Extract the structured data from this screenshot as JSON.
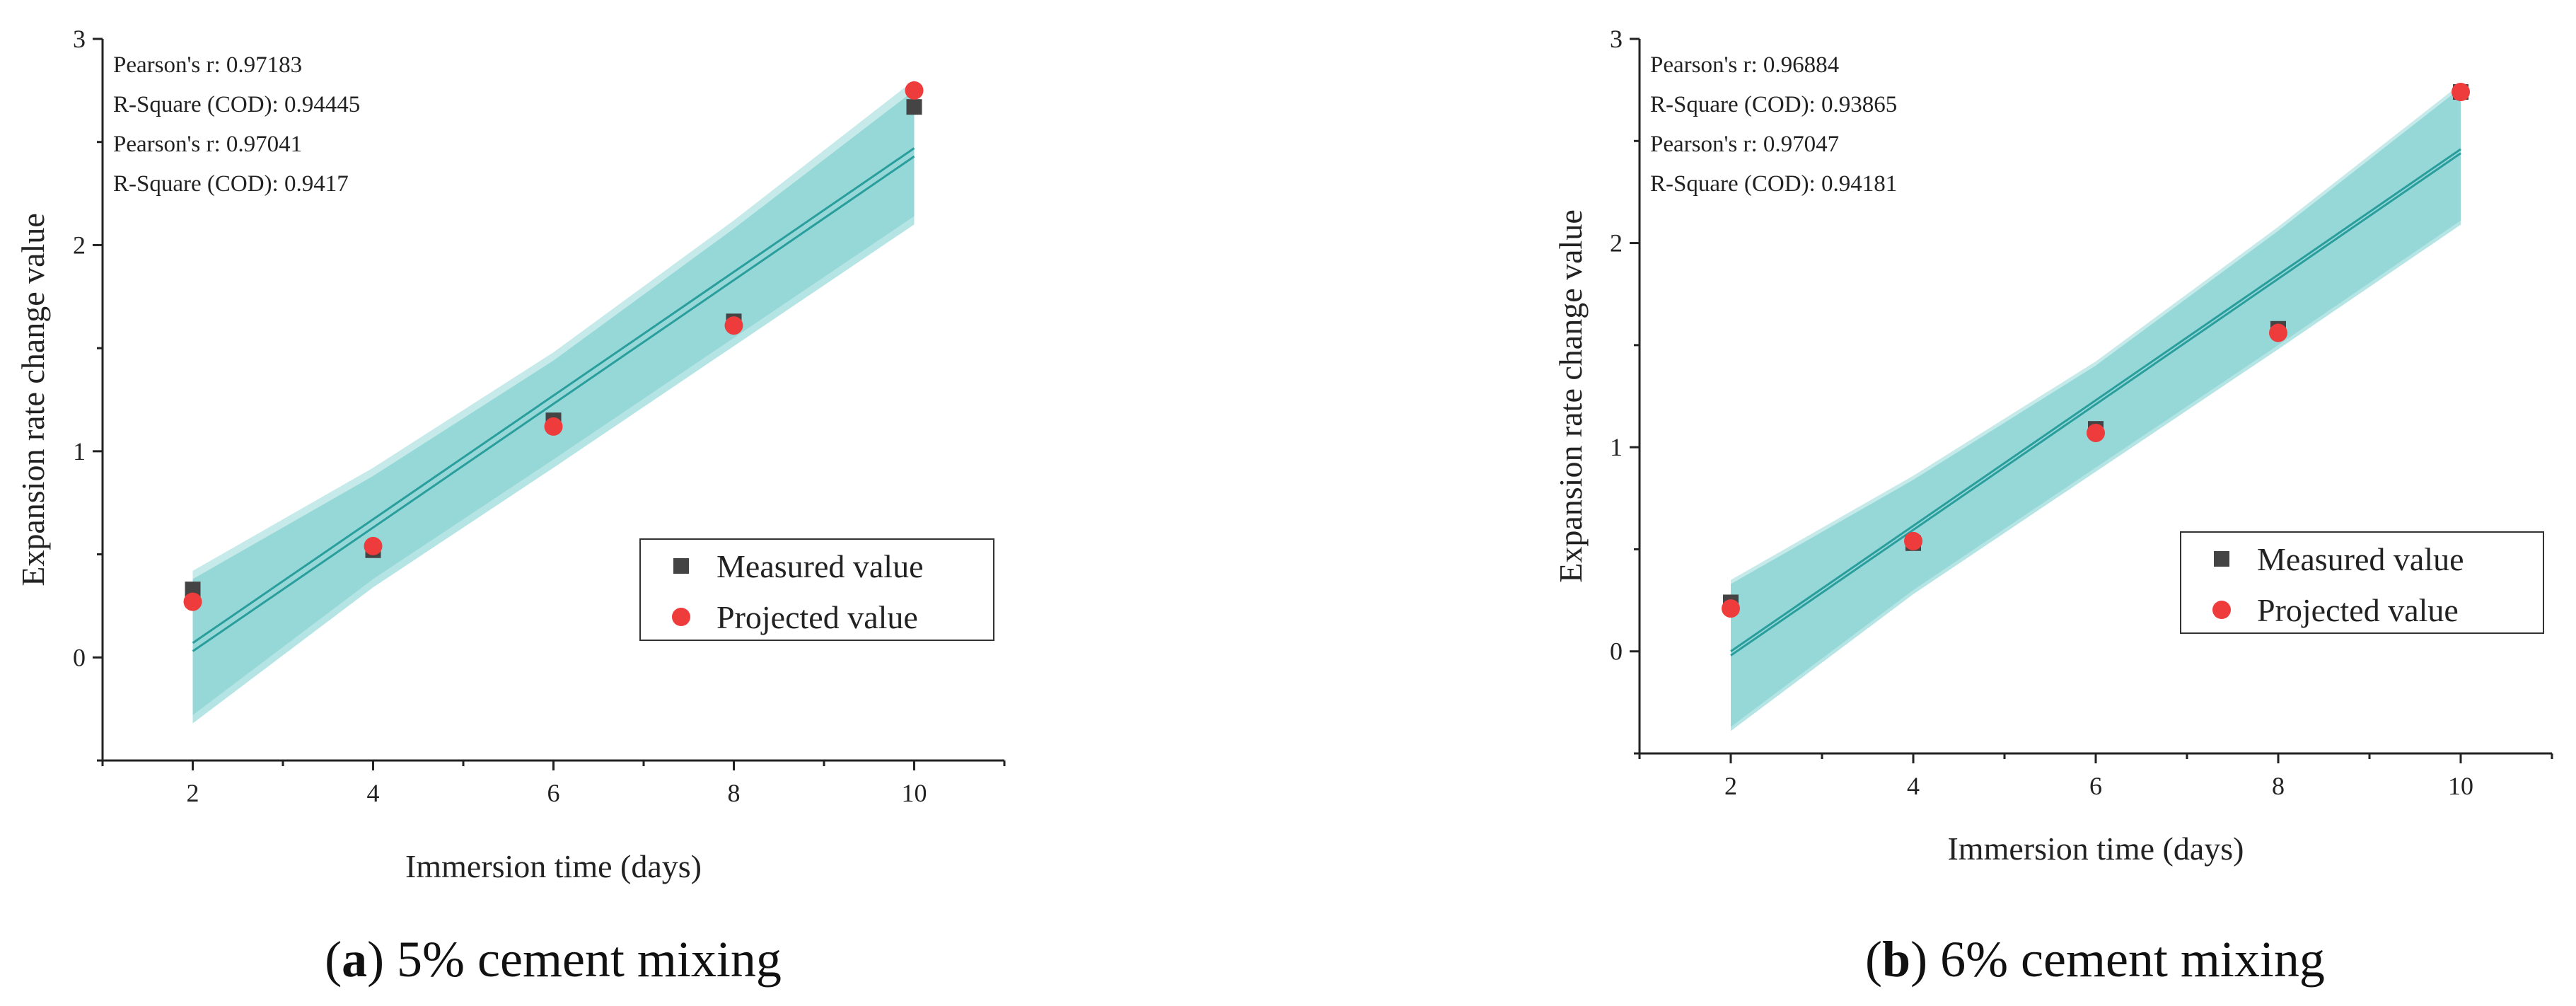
{
  "figure": {
    "chart_data": [
      {
        "type": "scatter",
        "panel_letter": "a",
        "caption": "5% cement mixing",
        "xlabel": "Immersion time (days)",
        "ylabel": "Expansion rate change value",
        "xlim": [
          1,
          11
        ],
        "ylim": [
          -0.5,
          3
        ],
        "x_ticks": [
          2,
          4,
          6,
          8,
          10
        ],
        "y_ticks": [
          0,
          1,
          2,
          3
        ],
        "stats": [
          "Pearson's r: 0.97183",
          "R-Square (COD): 0.94445",
          "Pearson's r: 0.97041",
          "R-Square (COD): 0.9417"
        ],
        "legend_position": "lower-right",
        "series": [
          {
            "name": "Measured value",
            "marker": "square",
            "color": "#444444",
            "x": [
              2,
              4,
              6,
              8,
              10
            ],
            "values": [
              0.33,
              0.52,
              1.15,
              1.63,
              2.67
            ]
          },
          {
            "name": "Projected value",
            "marker": "circle",
            "color": "#ee3b3b",
            "x": [
              2,
              4,
              6,
              8,
              10
            ],
            "values": [
              0.27,
              0.54,
              1.12,
              1.61,
              2.75
            ]
          }
        ],
        "fits": [
          {
            "x": [
              2,
              10
            ],
            "values": [
              0.07,
              2.47
            ]
          },
          {
            "x": [
              2,
              10
            ],
            "values": [
              0.03,
              2.43
            ]
          }
        ],
        "bands": [
          {
            "x": [
              2,
              4,
              6,
              8,
              10
            ],
            "upper": [
              0.42,
              0.92,
              1.48,
              2.12,
              2.8
            ],
            "lower": [
              -0.28,
              0.38,
              0.96,
              1.55,
              2.14
            ]
          },
          {
            "x": [
              2,
              4,
              6,
              8,
              10
            ],
            "upper": [
              0.38,
              0.88,
              1.44,
              2.08,
              2.75
            ],
            "lower": [
              -0.32,
              0.34,
              0.92,
              1.51,
              2.1
            ]
          }
        ],
        "band_color": "#5bc4c4",
        "fit_color": "#2a9d9d"
      },
      {
        "type": "scatter",
        "panel_letter": "b",
        "caption": "6% cement mixing",
        "xlabel": "Immersion time (days)",
        "ylabel": "Expansion rate change value",
        "xlim": [
          1,
          11
        ],
        "ylim": [
          -0.5,
          3
        ],
        "x_ticks": [
          2,
          4,
          6,
          8,
          10
        ],
        "y_ticks": [
          0,
          1,
          2,
          3
        ],
        "stats": [
          "Pearson's r: 0.96884",
          "R-Square (COD): 0.93865",
          "Pearson's r: 0.97047",
          "R-Square (COD): 0.94181"
        ],
        "legend_position": "lower-right",
        "series": [
          {
            "name": "Measured value",
            "marker": "square",
            "color": "#444444",
            "x": [
              2,
              4,
              6,
              8,
              10
            ],
            "values": [
              0.24,
              0.53,
              1.09,
              1.58,
              2.74
            ]
          },
          {
            "name": "Projected value",
            "marker": "circle",
            "color": "#ee3b3b",
            "x": [
              2,
              4,
              6,
              8,
              10
            ],
            "values": [
              0.21,
              0.54,
              1.07,
              1.56,
              2.74
            ]
          }
        ],
        "fits": [
          {
            "x": [
              2,
              10
            ],
            "values": [
              0.0,
              2.46
            ]
          },
          {
            "x": [
              2,
              10
            ],
            "values": [
              -0.02,
              2.44
            ]
          }
        ],
        "bands": [
          {
            "x": [
              2,
              4,
              6,
              8,
              10
            ],
            "upper": [
              0.35,
              0.86,
              1.42,
              2.08,
              2.78
            ],
            "lower": [
              -0.37,
              0.3,
              0.9,
              1.5,
              2.11
            ]
          },
          {
            "x": [
              2,
              4,
              6,
              8,
              10
            ],
            "upper": [
              0.33,
              0.84,
              1.4,
              2.06,
              2.76
            ],
            "lower": [
              -0.39,
              0.28,
              0.88,
              1.48,
              2.09
            ]
          }
        ],
        "band_color": "#5bc4c4",
        "fit_color": "#2a9d9d"
      }
    ]
  }
}
